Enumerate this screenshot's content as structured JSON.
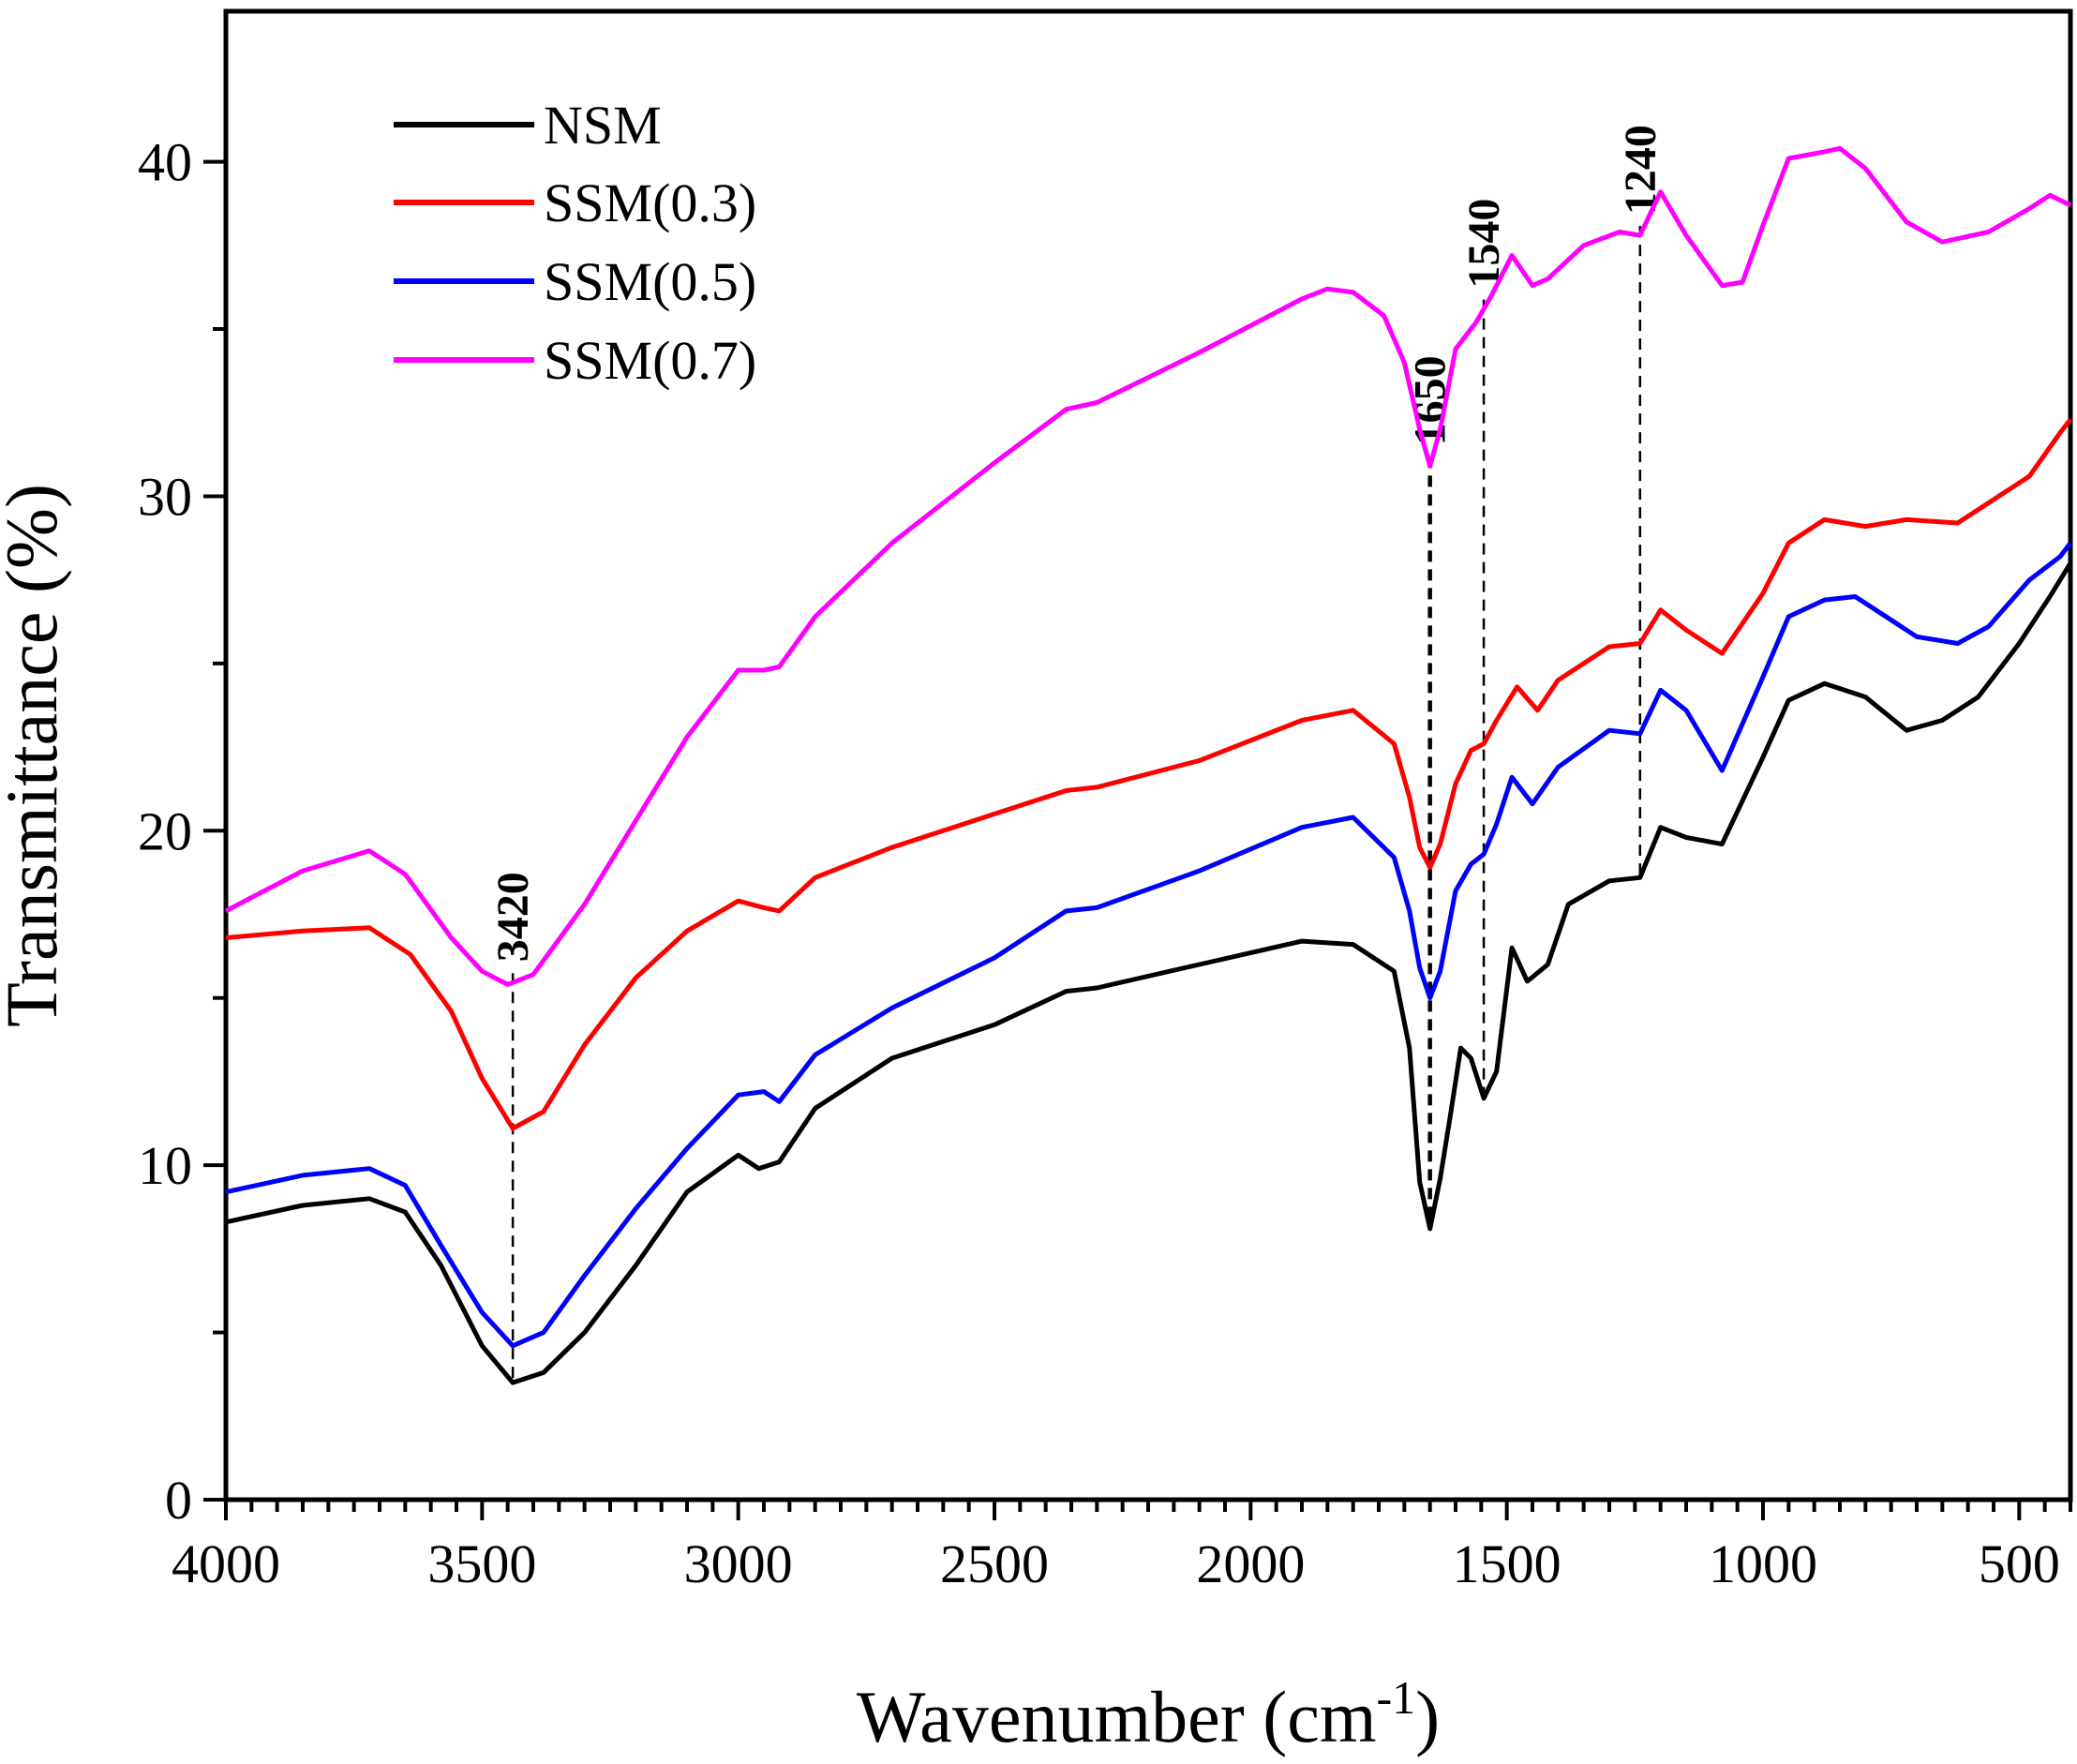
{
  "chart_data": {
    "type": "line",
    "title": "",
    "xlabel": "Wavenumber (cm",
    "xlabel_sup": "-1",
    "xlabel_end": ")",
    "ylabel": "Transmittance (%)",
    "xlim": [
      4000,
      400
    ],
    "ylim": [
      0,
      44.5
    ],
    "x_ticks": [
      "4000",
      "3500",
      "3000",
      "2500",
      "2000",
      "1500",
      "1000",
      "500"
    ],
    "y_ticks": [
      "0",
      "10",
      "20",
      "30",
      "40"
    ],
    "legend_position": "top-left",
    "series": [
      {
        "name": "NSM",
        "color": "#000000",
        "points": [
          [
            4000,
            8.3
          ],
          [
            3850,
            8.8
          ],
          [
            3720,
            9.0
          ],
          [
            3650,
            8.6
          ],
          [
            3580,
            7.0
          ],
          [
            3500,
            4.6
          ],
          [
            3440,
            3.5
          ],
          [
            3380,
            3.8
          ],
          [
            3300,
            5.0
          ],
          [
            3200,
            7.0
          ],
          [
            3100,
            9.2
          ],
          [
            3000,
            10.3
          ],
          [
            2960,
            9.9
          ],
          [
            2920,
            10.1
          ],
          [
            2850,
            11.7
          ],
          [
            2700,
            13.2
          ],
          [
            2500,
            14.2
          ],
          [
            2360,
            15.2
          ],
          [
            2300,
            15.3
          ],
          [
            2100,
            16.0
          ],
          [
            1900,
            16.7
          ],
          [
            1800,
            16.6
          ],
          [
            1720,
            15.8
          ],
          [
            1690,
            13.5
          ],
          [
            1670,
            9.5
          ],
          [
            1650,
            8.1
          ],
          [
            1630,
            9.6
          ],
          [
            1610,
            11.5
          ],
          [
            1590,
            13.5
          ],
          [
            1570,
            13.2
          ],
          [
            1545,
            12.0
          ],
          [
            1520,
            12.8
          ],
          [
            1490,
            16.5
          ],
          [
            1460,
            15.5
          ],
          [
            1420,
            16.0
          ],
          [
            1380,
            17.8
          ],
          [
            1300,
            18.5
          ],
          [
            1240,
            18.6
          ],
          [
            1200,
            20.1
          ],
          [
            1150,
            19.8
          ],
          [
            1080,
            19.6
          ],
          [
            1000,
            22.2
          ],
          [
            950,
            23.9
          ],
          [
            880,
            24.4
          ],
          [
            800,
            24.0
          ],
          [
            720,
            23.0
          ],
          [
            650,
            23.3
          ],
          [
            580,
            24.0
          ],
          [
            500,
            25.6
          ],
          [
            440,
            27.0
          ],
          [
            400,
            28.0
          ]
        ]
      },
      {
        "name": "SSM(0.3)",
        "color": "#ff0000",
        "points": [
          [
            4000,
            16.8
          ],
          [
            3850,
            17.0
          ],
          [
            3720,
            17.1
          ],
          [
            3640,
            16.3
          ],
          [
            3560,
            14.6
          ],
          [
            3500,
            12.6
          ],
          [
            3440,
            11.1
          ],
          [
            3380,
            11.6
          ],
          [
            3300,
            13.6
          ],
          [
            3200,
            15.6
          ],
          [
            3100,
            17.0
          ],
          [
            3000,
            17.9
          ],
          [
            2950,
            17.7
          ],
          [
            2920,
            17.6
          ],
          [
            2850,
            18.6
          ],
          [
            2700,
            19.5
          ],
          [
            2500,
            20.5
          ],
          [
            2360,
            21.2
          ],
          [
            2300,
            21.3
          ],
          [
            2100,
            22.1
          ],
          [
            1900,
            23.3
          ],
          [
            1800,
            23.6
          ],
          [
            1720,
            22.6
          ],
          [
            1690,
            21.0
          ],
          [
            1670,
            19.5
          ],
          [
            1650,
            18.9
          ],
          [
            1630,
            19.6
          ],
          [
            1600,
            21.4
          ],
          [
            1570,
            22.4
          ],
          [
            1545,
            22.6
          ],
          [
            1520,
            23.3
          ],
          [
            1480,
            24.3
          ],
          [
            1440,
            23.6
          ],
          [
            1400,
            24.5
          ],
          [
            1300,
            25.5
          ],
          [
            1240,
            25.6
          ],
          [
            1200,
            26.6
          ],
          [
            1150,
            26.0
          ],
          [
            1080,
            25.3
          ],
          [
            1000,
            27.1
          ],
          [
            950,
            28.6
          ],
          [
            880,
            29.3
          ],
          [
            800,
            29.1
          ],
          [
            720,
            29.3
          ],
          [
            620,
            29.2
          ],
          [
            560,
            29.8
          ],
          [
            480,
            30.6
          ],
          [
            420,
            31.9
          ],
          [
            400,
            32.3
          ]
        ]
      },
      {
        "name": "SSM(0.5)",
        "color": "#0000ff",
        "points": [
          [
            4000,
            9.2
          ],
          [
            3850,
            9.7
          ],
          [
            3720,
            9.9
          ],
          [
            3650,
            9.4
          ],
          [
            3580,
            7.6
          ],
          [
            3500,
            5.6
          ],
          [
            3440,
            4.6
          ],
          [
            3380,
            5.0
          ],
          [
            3300,
            6.7
          ],
          [
            3200,
            8.7
          ],
          [
            3100,
            10.5
          ],
          [
            3000,
            12.1
          ],
          [
            2950,
            12.2
          ],
          [
            2920,
            11.9
          ],
          [
            2850,
            13.3
          ],
          [
            2700,
            14.7
          ],
          [
            2500,
            16.2
          ],
          [
            2360,
            17.6
          ],
          [
            2300,
            17.7
          ],
          [
            2100,
            18.8
          ],
          [
            1900,
            20.1
          ],
          [
            1800,
            20.4
          ],
          [
            1720,
            19.2
          ],
          [
            1690,
            17.6
          ],
          [
            1670,
            15.9
          ],
          [
            1650,
            15.0
          ],
          [
            1630,
            15.8
          ],
          [
            1600,
            18.2
          ],
          [
            1570,
            19.0
          ],
          [
            1545,
            19.3
          ],
          [
            1520,
            20.2
          ],
          [
            1490,
            21.6
          ],
          [
            1450,
            20.8
          ],
          [
            1400,
            21.9
          ],
          [
            1300,
            23.0
          ],
          [
            1240,
            22.9
          ],
          [
            1200,
            24.2
          ],
          [
            1150,
            23.6
          ],
          [
            1080,
            21.8
          ],
          [
            1000,
            24.6
          ],
          [
            950,
            26.4
          ],
          [
            880,
            26.9
          ],
          [
            820,
            27.0
          ],
          [
            760,
            26.4
          ],
          [
            700,
            25.8
          ],
          [
            620,
            25.6
          ],
          [
            560,
            26.1
          ],
          [
            480,
            27.5
          ],
          [
            420,
            28.2
          ],
          [
            400,
            28.6
          ]
        ]
      },
      {
        "name": "SSM(0.7)",
        "color": "#ff00ff",
        "points": [
          [
            4000,
            17.6
          ],
          [
            3850,
            18.8
          ],
          [
            3720,
            19.4
          ],
          [
            3650,
            18.7
          ],
          [
            3560,
            16.8
          ],
          [
            3500,
            15.8
          ],
          [
            3450,
            15.4
          ],
          [
            3400,
            15.7
          ],
          [
            3300,
            17.8
          ],
          [
            3200,
            20.3
          ],
          [
            3100,
            22.8
          ],
          [
            3000,
            24.8
          ],
          [
            2950,
            24.8
          ],
          [
            2920,
            24.9
          ],
          [
            2850,
            26.4
          ],
          [
            2700,
            28.6
          ],
          [
            2500,
            31.0
          ],
          [
            2360,
            32.6
          ],
          [
            2300,
            32.8
          ],
          [
            2100,
            34.3
          ],
          [
            1900,
            35.9
          ],
          [
            1850,
            36.2
          ],
          [
            1800,
            36.1
          ],
          [
            1740,
            35.4
          ],
          [
            1700,
            34.0
          ],
          [
            1670,
            32.0
          ],
          [
            1650,
            30.9
          ],
          [
            1630,
            32.0
          ],
          [
            1600,
            34.4
          ],
          [
            1560,
            35.2
          ],
          [
            1530,
            36.0
          ],
          [
            1490,
            37.2
          ],
          [
            1450,
            36.3
          ],
          [
            1420,
            36.5
          ],
          [
            1350,
            37.5
          ],
          [
            1280,
            37.9
          ],
          [
            1240,
            37.8
          ],
          [
            1200,
            39.1
          ],
          [
            1150,
            37.8
          ],
          [
            1080,
            36.3
          ],
          [
            1040,
            36.4
          ],
          [
            1000,
            38.1
          ],
          [
            950,
            40.1
          ],
          [
            880,
            40.3
          ],
          [
            850,
            40.4
          ],
          [
            800,
            39.8
          ],
          [
            720,
            38.2
          ],
          [
            650,
            37.6
          ],
          [
            560,
            37.9
          ],
          [
            480,
            38.6
          ],
          [
            440,
            39.0
          ],
          [
            400,
            38.7
          ]
        ]
      }
    ],
    "annotations": [
      {
        "label": "3420",
        "x": 3440
      },
      {
        "label": "1650",
        "x": 1650
      },
      {
        "label": "1540",
        "x": 1545
      },
      {
        "label": "1240",
        "x": 1240
      }
    ]
  }
}
